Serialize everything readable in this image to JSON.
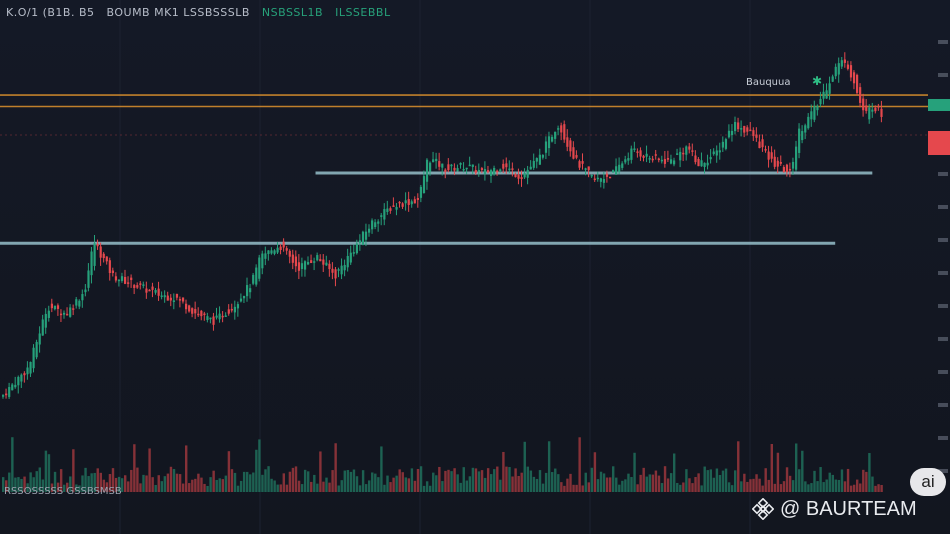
{
  "header": {
    "title_left": "K.O/1 (B1B. B5",
    "title_mid": "BOUMB MK1 LSSBSSSLB",
    "title_green": "NSBSSL1B",
    "title_right": "ILSSEBBL"
  },
  "footer": {
    "label": "RSSOSSSSS GSSBSMSB"
  },
  "annotation": {
    "text": "Bauquua"
  },
  "watermark": {
    "text": "@ BAURTEAM"
  },
  "ai_badge": {
    "text": "ai"
  },
  "colors": {
    "background": "#131722",
    "up": "#26a17b",
    "down": "#e5484d",
    "resistance": "#d38b2c",
    "support": "#8fb6c1"
  },
  "chart_data": {
    "type": "candlestick",
    "title": "",
    "xlabel": "",
    "ylabel": "",
    "y_axis_position": "right",
    "grid": true,
    "ylim": [
      0,
      100
    ],
    "horizontal_lines": [
      {
        "kind": "resistance",
        "y": 85.5,
        "x_from": 0,
        "x_to": 100
      },
      {
        "kind": "resistance",
        "y": 82.5,
        "x_from": 0,
        "x_to": 100
      },
      {
        "kind": "support",
        "y": 65.0,
        "x_from": 34,
        "x_to": 94
      },
      {
        "kind": "support",
        "y": 46.5,
        "x_from": 0,
        "x_to": 90
      }
    ],
    "close_path": [
      [
        0,
        6
      ],
      [
        3,
        14
      ],
      [
        5,
        30
      ],
      [
        7,
        28
      ],
      [
        9,
        34
      ],
      [
        10,
        47
      ],
      [
        12,
        38
      ],
      [
        15,
        35
      ],
      [
        17,
        33
      ],
      [
        19,
        32
      ],
      [
        21,
        28
      ],
      [
        23,
        26
      ],
      [
        25,
        30
      ],
      [
        27,
        36
      ],
      [
        28,
        43
      ],
      [
        30,
        46
      ],
      [
        32,
        40
      ],
      [
        34,
        43
      ],
      [
        36,
        38
      ],
      [
        38,
        45
      ],
      [
        40,
        52
      ],
      [
        42,
        56
      ],
      [
        43,
        57
      ],
      [
        45,
        58
      ],
      [
        46,
        69
      ],
      [
        48,
        66
      ],
      [
        50,
        67
      ],
      [
        52,
        65
      ],
      [
        54,
        67
      ],
      [
        56,
        64
      ],
      [
        58,
        69
      ],
      [
        60,
        78
      ],
      [
        62,
        68
      ],
      [
        64,
        63
      ],
      [
        66,
        65
      ],
      [
        68,
        71
      ],
      [
        70,
        69
      ],
      [
        72,
        68
      ],
      [
        74,
        72
      ],
      [
        75,
        67
      ],
      [
        77,
        70
      ],
      [
        79,
        78
      ],
      [
        81,
        75
      ],
      [
        83,
        68
      ],
      [
        85,
        65
      ],
      [
        86,
        76
      ],
      [
        88,
        83
      ],
      [
        90,
        93
      ],
      [
        91,
        95
      ],
      [
        92,
        88
      ],
      [
        93,
        80
      ],
      [
        94,
        83
      ],
      [
        95,
        80
      ]
    ]
  }
}
